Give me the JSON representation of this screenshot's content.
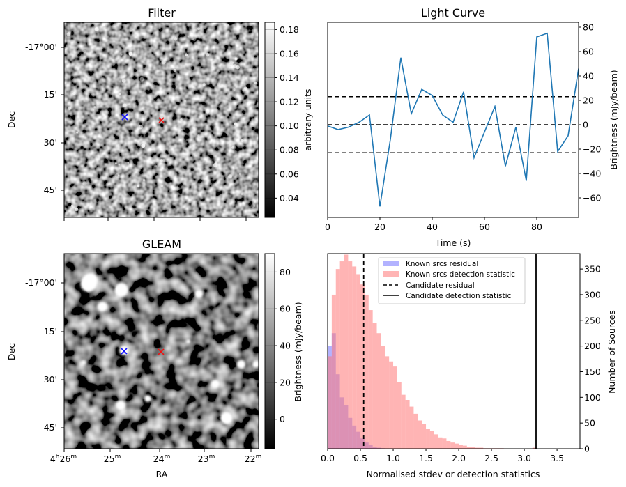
{
  "panels": {
    "filter": {
      "title": "Filter",
      "ylabel": "Dec",
      "dec_ticks": [
        "-17°00'",
        "15'",
        "30'",
        "45'"
      ],
      "colorbar": {
        "label": "arbitrary units",
        "range": [
          0.024,
          0.186
        ],
        "ticks": [
          0.04,
          0.06,
          0.08,
          0.1,
          0.12,
          0.14,
          0.16,
          0.18
        ],
        "tick_labels": [
          "0.04",
          "0.06",
          "0.08",
          "0.10",
          "0.12",
          "0.14",
          "0.16",
          "0.18"
        ]
      },
      "markers": [
        {
          "name": "candidate-blue",
          "color": "#1010ff"
        },
        {
          "name": "candidate-red",
          "color": "#ee1111"
        }
      ]
    },
    "gleam": {
      "title": "GLEAM",
      "ylabel": "Dec",
      "xlabel": "RA",
      "dec_ticks": [
        "-17°00'",
        "15'",
        "30'",
        "45'"
      ],
      "ra_ticks": [
        {
          "h": "4",
          "hs": "h",
          "m": "26",
          "ms": "m"
        },
        {
          "h": "",
          "hs": "",
          "m": "25",
          "ms": "m"
        },
        {
          "h": "",
          "hs": "",
          "m": "24",
          "ms": "m"
        },
        {
          "h": "",
          "hs": "",
          "m": "23",
          "ms": "m"
        },
        {
          "h": "",
          "hs": "",
          "m": "22",
          "ms": "m"
        }
      ],
      "colorbar": {
        "label": "Brightness (mJy/beam)",
        "range": [
          -16,
          90
        ],
        "ticks": [
          0,
          20,
          40,
          60,
          80
        ],
        "tick_labels": [
          "0",
          "20",
          "40",
          "60",
          "80"
        ]
      }
    }
  },
  "chart_data": [
    {
      "type": "line",
      "title": "Light Curve",
      "xlabel": "Time (s)",
      "ylabel": "Brightness (mJy/beam)",
      "xlim": [
        0,
        96
      ],
      "ylim": [
        -76,
        84
      ],
      "xticks": [
        0,
        20,
        40,
        60,
        80
      ],
      "yticks": [
        -60,
        -40,
        -20,
        0,
        20,
        40,
        60,
        80
      ],
      "series": [
        {
          "name": "light curve",
          "color": "#1f77b4",
          "x": [
            0,
            4,
            8,
            12,
            16,
            20,
            24,
            28,
            32,
            36,
            40,
            44,
            48,
            52,
            56,
            60,
            64,
            68,
            72,
            76,
            80,
            84,
            88,
            92,
            96
          ],
          "y": [
            -1,
            -4,
            -2,
            2,
            8,
            -67,
            -12,
            55,
            9,
            29,
            24,
            8,
            2,
            27,
            -27,
            -6,
            15,
            -34,
            -2,
            -46,
            72,
            75,
            -22,
            -9,
            46
          ]
        }
      ],
      "hlines": [
        {
          "y": 23,
          "style": "dashed"
        },
        {
          "y": 0,
          "style": "dashed"
        },
        {
          "y": -23,
          "style": "dashed"
        }
      ]
    },
    {
      "type": "histogram",
      "xlabel": "Normalised stdev or detection statistics",
      "ylabel": "Number of Sources",
      "xlim": [
        0,
        3.85
      ],
      "ylim": [
        0,
        380
      ],
      "xticks": [
        0.0,
        0.5,
        1.0,
        1.5,
        2.0,
        2.5,
        3.0,
        3.5
      ],
      "xtick_labels": [
        "0.0",
        "0.5",
        "1.0",
        "1.5",
        "2.0",
        "2.5",
        "3.0",
        "3.5"
      ],
      "yticks": [
        0,
        50,
        100,
        150,
        200,
        250,
        300,
        350
      ],
      "bin_width": 0.0625,
      "series": [
        {
          "name": "Known srcs residual",
          "color": "#6666ff",
          "alpha": 0.5,
          "bin_start": 0.0,
          "values": [
            200,
            225,
            145,
            100,
            85,
            60,
            45,
            33,
            20,
            12,
            8,
            4,
            2,
            1
          ]
        },
        {
          "name": "Known srcs detection statistic",
          "color": "#ff7777",
          "alpha": 0.55,
          "bin_start": 0.0,
          "values": [
            180,
            300,
            350,
            365,
            378,
            365,
            355,
            340,
            320,
            300,
            270,
            245,
            225,
            200,
            180,
            170,
            160,
            130,
            105,
            95,
            82,
            68,
            55,
            48,
            38,
            34,
            28,
            22,
            20,
            15,
            12,
            10,
            8,
            6,
            4,
            3,
            2,
            2,
            1,
            1,
            1,
            1,
            1,
            0,
            0,
            0,
            0,
            0,
            0,
            0,
            2,
            0,
            0,
            0,
            0,
            0,
            0,
            0,
            0,
            0,
            0
          ]
        }
      ],
      "vlines": [
        {
          "name": "Candidate residual",
          "x": 0.55,
          "style": "dashed"
        },
        {
          "name": "Candidate detection statistic",
          "x": 3.18,
          "style": "solid"
        }
      ],
      "legend": {
        "position": "top-center",
        "entries": [
          "Known srcs residual",
          "Known srcs detection statistic",
          "Candidate residual",
          "Candidate detection statistic"
        ]
      }
    }
  ]
}
